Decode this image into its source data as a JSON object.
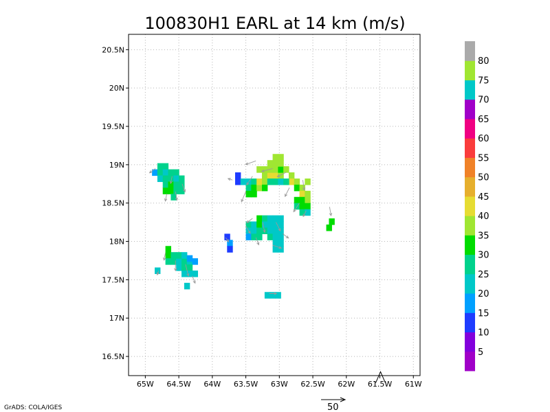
{
  "credit": "GrADS: COLA/IGES",
  "chart_data": {
    "type": "heatmap",
    "title": "100830H1 EARL at 14 km (m/s)",
    "xlim": [
      -65.25,
      -60.9
    ],
    "ylim": [
      16.25,
      20.7
    ],
    "x_ticks": [
      {
        "value": -65.0,
        "label": "65W"
      },
      {
        "value": -64.5,
        "label": "64.5W"
      },
      {
        "value": -64.0,
        "label": "64W"
      },
      {
        "value": -63.5,
        "label": "63.5W"
      },
      {
        "value": -63.0,
        "label": "63W"
      },
      {
        "value": -62.5,
        "label": "62.5W"
      },
      {
        "value": -62.0,
        "label": "62W"
      },
      {
        "value": -61.5,
        "label": "61.5W"
      },
      {
        "value": -61.0,
        "label": "61W"
      }
    ],
    "y_ticks": [
      {
        "value": 16.5,
        "label": "16.5N"
      },
      {
        "value": 17.0,
        "label": "17N"
      },
      {
        "value": 17.5,
        "label": "17.5N"
      },
      {
        "value": 18.0,
        "label": "18N"
      },
      {
        "value": 18.5,
        "label": "18.5N"
      },
      {
        "value": 19.0,
        "label": "19N"
      },
      {
        "value": 19.5,
        "label": "19.5N"
      },
      {
        "value": 20.0,
        "label": "20N"
      },
      {
        "value": 20.5,
        "label": "20.5N"
      }
    ],
    "grid": true,
    "colorbar": {
      "levels": [
        {
          "label": "",
          "color": "#a000c8"
        },
        {
          "label": "5",
          "color": "#8200dc"
        },
        {
          "label": "10",
          "color": "#1e3cff"
        },
        {
          "label": "15",
          "color": "#00a0ff"
        },
        {
          "label": "20",
          "color": "#00c8c8"
        },
        {
          "label": "25",
          "color": "#00d28c"
        },
        {
          "label": "30",
          "color": "#00dc00"
        },
        {
          "label": "35",
          "color": "#a0e632"
        },
        {
          "label": "40",
          "color": "#e6dc32"
        },
        {
          "label": "45",
          "color": "#e6af2d"
        },
        {
          "label": "50",
          "color": "#f08228"
        },
        {
          "label": "55",
          "color": "#fa3c3c"
        },
        {
          "label": "60",
          "color": "#f00082"
        },
        {
          "label": "65",
          "color": "#a000c8"
        },
        {
          "label": "70",
          "color": "#00c8c8"
        },
        {
          "label": "75",
          "color": "#a0e632"
        },
        {
          "label": "80",
          "color": "#aaaaaa"
        }
      ]
    },
    "cells": [
      {
        "lon": -64.78,
        "lat": 18.98,
        "speed": 25
      },
      {
        "lon": -64.7,
        "lat": 18.98,
        "speed": 25
      },
      {
        "lon": -64.86,
        "lat": 18.9,
        "speed": 15
      },
      {
        "lon": -64.78,
        "lat": 18.9,
        "speed": 25
      },
      {
        "lon": -64.7,
        "lat": 18.9,
        "speed": 20
      },
      {
        "lon": -64.62,
        "lat": 18.9,
        "speed": 25
      },
      {
        "lon": -64.54,
        "lat": 18.9,
        "speed": 25
      },
      {
        "lon": -64.78,
        "lat": 18.82,
        "speed": 20
      },
      {
        "lon": -64.7,
        "lat": 18.82,
        "speed": 25
      },
      {
        "lon": -64.62,
        "lat": 18.82,
        "speed": 25
      },
      {
        "lon": -64.54,
        "lat": 18.82,
        "speed": 20
      },
      {
        "lon": -64.46,
        "lat": 18.82,
        "speed": 25
      },
      {
        "lon": -64.7,
        "lat": 18.74,
        "speed": 25
      },
      {
        "lon": -64.62,
        "lat": 18.74,
        "speed": 30
      },
      {
        "lon": -64.54,
        "lat": 18.74,
        "speed": 25
      },
      {
        "lon": -64.46,
        "lat": 18.74,
        "speed": 25
      },
      {
        "lon": -64.7,
        "lat": 18.66,
        "speed": 30
      },
      {
        "lon": -64.62,
        "lat": 18.66,
        "speed": 30
      },
      {
        "lon": -64.54,
        "lat": 18.66,
        "speed": 25
      },
      {
        "lon": -64.46,
        "lat": 18.66,
        "speed": 25
      },
      {
        "lon": -64.58,
        "lat": 18.58,
        "speed": 25
      },
      {
        "lon": -63.62,
        "lat": 18.86,
        "speed": 10
      },
      {
        "lon": -63.62,
        "lat": 18.78,
        "speed": 10
      },
      {
        "lon": -63.54,
        "lat": 18.78,
        "speed": 20
      },
      {
        "lon": -63.46,
        "lat": 18.78,
        "speed": 20
      },
      {
        "lon": -63.38,
        "lat": 18.78,
        "speed": 25
      },
      {
        "lon": -63.46,
        "lat": 18.7,
        "speed": 25
      },
      {
        "lon": -63.38,
        "lat": 18.7,
        "speed": 30
      },
      {
        "lon": -63.3,
        "lat": 18.7,
        "speed": 35
      },
      {
        "lon": -63.46,
        "lat": 18.62,
        "speed": 30
      },
      {
        "lon": -63.38,
        "lat": 18.62,
        "speed": 30
      },
      {
        "lon": -63.3,
        "lat": 18.78,
        "speed": 40
      },
      {
        "lon": -63.22,
        "lat": 18.78,
        "speed": 35
      },
      {
        "lon": -63.22,
        "lat": 18.86,
        "speed": 35
      },
      {
        "lon": -63.14,
        "lat": 18.86,
        "speed": 40
      },
      {
        "lon": -63.06,
        "lat": 18.86,
        "speed": 40
      },
      {
        "lon": -62.98,
        "lat": 18.86,
        "speed": 35
      },
      {
        "lon": -63.3,
        "lat": 18.94,
        "speed": 35
      },
      {
        "lon": -63.22,
        "lat": 18.94,
        "speed": 35
      },
      {
        "lon": -63.14,
        "lat": 18.94,
        "speed": 35
      },
      {
        "lon": -63.06,
        "lat": 18.94,
        "speed": 35
      },
      {
        "lon": -62.98,
        "lat": 18.94,
        "speed": 30
      },
      {
        "lon": -63.14,
        "lat": 19.02,
        "speed": 35
      },
      {
        "lon": -63.06,
        "lat": 19.02,
        "speed": 35
      },
      {
        "lon": -62.98,
        "lat": 19.02,
        "speed": 35
      },
      {
        "lon": -63.06,
        "lat": 19.1,
        "speed": 35
      },
      {
        "lon": -62.98,
        "lat": 19.1,
        "speed": 35
      },
      {
        "lon": -62.9,
        "lat": 18.94,
        "speed": 35
      },
      {
        "lon": -62.82,
        "lat": 18.86,
        "speed": 35
      },
      {
        "lon": -62.82,
        "lat": 18.78,
        "speed": 40
      },
      {
        "lon": -62.74,
        "lat": 18.78,
        "speed": 35
      },
      {
        "lon": -63.14,
        "lat": 18.78,
        "speed": 25
      },
      {
        "lon": -63.06,
        "lat": 18.78,
        "speed": 25
      },
      {
        "lon": -62.98,
        "lat": 18.78,
        "speed": 20
      },
      {
        "lon": -62.9,
        "lat": 18.78,
        "speed": 25
      },
      {
        "lon": -63.22,
        "lat": 18.7,
        "speed": 30
      },
      {
        "lon": -62.74,
        "lat": 18.7,
        "speed": 30
      },
      {
        "lon": -62.66,
        "lat": 18.7,
        "speed": 35
      },
      {
        "lon": -62.58,
        "lat": 18.78,
        "speed": 35
      },
      {
        "lon": -62.66,
        "lat": 18.62,
        "speed": 40
      },
      {
        "lon": -62.58,
        "lat": 18.62,
        "speed": 35
      },
      {
        "lon": -62.74,
        "lat": 18.54,
        "speed": 30
      },
      {
        "lon": -62.66,
        "lat": 18.54,
        "speed": 30
      },
      {
        "lon": -62.58,
        "lat": 18.54,
        "speed": 35
      },
      {
        "lon": -62.74,
        "lat": 18.46,
        "speed": 25
      },
      {
        "lon": -62.66,
        "lat": 18.46,
        "speed": 30
      },
      {
        "lon": -62.58,
        "lat": 18.46,
        "speed": 30
      },
      {
        "lon": -62.66,
        "lat": 18.38,
        "speed": 25
      },
      {
        "lon": -62.58,
        "lat": 18.38,
        "speed": 20
      },
      {
        "lon": -62.22,
        "lat": 18.26,
        "speed": 30
      },
      {
        "lon": -62.26,
        "lat": 18.18,
        "speed": 30
      },
      {
        "lon": -63.78,
        "lat": 18.06,
        "speed": 10
      },
      {
        "lon": -63.74,
        "lat": 17.98,
        "speed": 15
      },
      {
        "lon": -63.74,
        "lat": 17.9,
        "speed": 10
      },
      {
        "lon": -63.46,
        "lat": 18.22,
        "speed": 25
      },
      {
        "lon": -63.38,
        "lat": 18.22,
        "speed": 20
      },
      {
        "lon": -63.3,
        "lat": 18.3,
        "speed": 30
      },
      {
        "lon": -63.22,
        "lat": 18.3,
        "speed": 25
      },
      {
        "lon": -63.14,
        "lat": 18.3,
        "speed": 20
      },
      {
        "lon": -63.06,
        "lat": 18.3,
        "speed": 20
      },
      {
        "lon": -62.98,
        "lat": 18.3,
        "speed": 20
      },
      {
        "lon": -63.3,
        "lat": 18.22,
        "speed": 30
      },
      {
        "lon": -63.22,
        "lat": 18.22,
        "speed": 20
      },
      {
        "lon": -63.14,
        "lat": 18.22,
        "speed": 20
      },
      {
        "lon": -63.06,
        "lat": 18.22,
        "speed": 20
      },
      {
        "lon": -62.98,
        "lat": 18.22,
        "speed": 20
      },
      {
        "lon": -63.46,
        "lat": 18.14,
        "speed": 20
      },
      {
        "lon": -63.38,
        "lat": 18.14,
        "speed": 20
      },
      {
        "lon": -63.3,
        "lat": 18.14,
        "speed": 25
      },
      {
        "lon": -63.22,
        "lat": 18.14,
        "speed": 25
      },
      {
        "lon": -63.14,
        "lat": 18.14,
        "speed": 20
      },
      {
        "lon": -63.06,
        "lat": 18.14,
        "speed": 20
      },
      {
        "lon": -62.98,
        "lat": 18.14,
        "speed": 20
      },
      {
        "lon": -63.46,
        "lat": 18.06,
        "speed": 15
      },
      {
        "lon": -63.38,
        "lat": 18.06,
        "speed": 25
      },
      {
        "lon": -63.3,
        "lat": 18.06,
        "speed": 25
      },
      {
        "lon": -63.14,
        "lat": 18.06,
        "speed": 25
      },
      {
        "lon": -63.06,
        "lat": 18.06,
        "speed": 20
      },
      {
        "lon": -62.98,
        "lat": 18.06,
        "speed": 20
      },
      {
        "lon": -63.06,
        "lat": 17.98,
        "speed": 20
      },
      {
        "lon": -62.98,
        "lat": 17.98,
        "speed": 20
      },
      {
        "lon": -63.06,
        "lat": 17.9,
        "speed": 20
      },
      {
        "lon": -62.98,
        "lat": 17.9,
        "speed": 20
      },
      {
        "lon": -64.66,
        "lat": 17.9,
        "speed": 30
      },
      {
        "lon": -64.66,
        "lat": 17.82,
        "speed": 30
      },
      {
        "lon": -64.58,
        "lat": 17.82,
        "speed": 25
      },
      {
        "lon": -64.66,
        "lat": 17.74,
        "speed": 25
      },
      {
        "lon": -64.58,
        "lat": 17.74,
        "speed": 25
      },
      {
        "lon": -64.5,
        "lat": 17.74,
        "speed": 20
      },
      {
        "lon": -64.42,
        "lat": 17.74,
        "speed": 25
      },
      {
        "lon": -64.34,
        "lat": 17.74,
        "speed": 20
      },
      {
        "lon": -64.5,
        "lat": 17.82,
        "speed": 25
      },
      {
        "lon": -64.42,
        "lat": 17.82,
        "speed": 20
      },
      {
        "lon": -64.34,
        "lat": 17.78,
        "speed": 15
      },
      {
        "lon": -64.26,
        "lat": 17.74,
        "speed": 15
      },
      {
        "lon": -64.5,
        "lat": 17.66,
        "speed": 20
      },
      {
        "lon": -64.42,
        "lat": 17.66,
        "speed": 25
      },
      {
        "lon": -64.34,
        "lat": 17.66,
        "speed": 25
      },
      {
        "lon": -64.42,
        "lat": 17.58,
        "speed": 20
      },
      {
        "lon": -64.34,
        "lat": 17.58,
        "speed": 20
      },
      {
        "lon": -64.26,
        "lat": 17.58,
        "speed": 20
      },
      {
        "lon": -64.82,
        "lat": 17.62,
        "speed": 20
      },
      {
        "lon": -64.38,
        "lat": 17.42,
        "speed": 20
      },
      {
        "lon": -63.18,
        "lat": 17.3,
        "speed": 20
      },
      {
        "lon": -63.1,
        "lat": 17.3,
        "speed": 20
      },
      {
        "lon": -63.02,
        "lat": 17.3,
        "speed": 20
      }
    ],
    "vectors": [
      {
        "lon": -64.85,
        "lat": 18.95,
        "u": -8,
        "v": -6
      },
      {
        "lon": -64.6,
        "lat": 18.85,
        "u": -2,
        "v": -10
      },
      {
        "lon": -64.55,
        "lat": 18.65,
        "u": 2,
        "v": -12
      },
      {
        "lon": -64.68,
        "lat": 18.62,
        "u": -2,
        "v": -10
      },
      {
        "lon": -64.45,
        "lat": 18.75,
        "u": 4,
        "v": -11
      },
      {
        "lon": -63.7,
        "lat": 18.8,
        "u": -6,
        "v": 2
      },
      {
        "lon": -63.35,
        "lat": 19.05,
        "u": -14,
        "v": -5
      },
      {
        "lon": -63.1,
        "lat": 18.95,
        "u": -15,
        "v": -4
      },
      {
        "lon": -63.4,
        "lat": 18.85,
        "u": -8,
        "v": -12
      },
      {
        "lon": -63.5,
        "lat": 18.65,
        "u": -6,
        "v": -14
      },
      {
        "lon": -62.9,
        "lat": 18.9,
        "u": -12,
        "v": -6
      },
      {
        "lon": -62.85,
        "lat": 18.7,
        "u": -6,
        "v": -12
      },
      {
        "lon": -62.7,
        "lat": 18.5,
        "u": -8,
        "v": -12
      },
      {
        "lon": -62.65,
        "lat": 18.8,
        "u": 2,
        "v": -14
      },
      {
        "lon": -62.6,
        "lat": 18.4,
        "u": -4,
        "v": -8
      },
      {
        "lon": -62.25,
        "lat": 18.45,
        "u": 2,
        "v": -12
      },
      {
        "lon": -63.4,
        "lat": 18.3,
        "u": -8,
        "v": -6
      },
      {
        "lon": -63.5,
        "lat": 18.2,
        "u": 6,
        "v": -10
      },
      {
        "lon": -63.25,
        "lat": 18.25,
        "u": 3,
        "v": -14
      },
      {
        "lon": -63.05,
        "lat": 18.25,
        "u": 6,
        "v": -12
      },
      {
        "lon": -62.95,
        "lat": 18.1,
        "u": 8,
        "v": -6
      },
      {
        "lon": -63.1,
        "lat": 17.95,
        "u": 12,
        "v": -4
      },
      {
        "lon": -63.35,
        "lat": 18.05,
        "u": 4,
        "v": -10
      },
      {
        "lon": -63.8,
        "lat": 18.05,
        "u": 4,
        "v": -6
      },
      {
        "lon": -64.7,
        "lat": 17.85,
        "u": -2,
        "v": -10
      },
      {
        "lon": -64.55,
        "lat": 17.75,
        "u": 0,
        "v": -14
      },
      {
        "lon": -64.4,
        "lat": 17.7,
        "u": 4,
        "v": -16
      },
      {
        "lon": -64.3,
        "lat": 17.55,
        "u": 4,
        "v": -10
      },
      {
        "lon": -64.8,
        "lat": 17.62,
        "u": -2,
        "v": -6
      },
      {
        "lon": -63.15,
        "lat": 17.32,
        "u": 10,
        "v": 0
      }
    ],
    "reference_vector": {
      "magnitude": 50,
      "label": "50"
    },
    "marker": {
      "type": "triangle",
      "lon": -61.49,
      "lat": 16.3
    }
  }
}
